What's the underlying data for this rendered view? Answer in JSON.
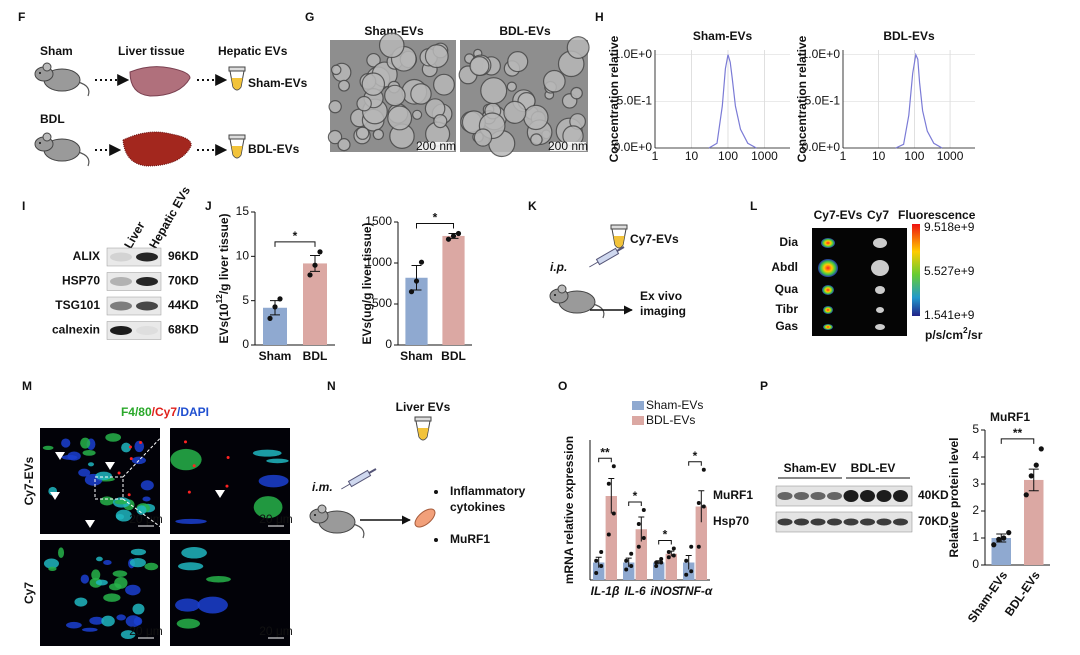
{
  "F": {
    "label": "F",
    "sham": "Sham",
    "liver_tissue": "Liver tissue",
    "hepatic_evs": "Hepatic EVs",
    "sham_evs": "Sham-EVs",
    "bdl": "BDL",
    "bdl_evs": "BDL-EVs"
  },
  "G": {
    "label": "G",
    "titles": [
      "Sham-EVs",
      "BDL-EVs"
    ],
    "scale_bars": [
      "200 nm",
      "200 nm"
    ]
  },
  "H": {
    "label": "H",
    "charts": [
      {
        "type": "line",
        "title": "Sham-EVs",
        "y_label": "Concentration relative",
        "x": [
          30,
          50,
          70,
          85,
          100,
          115,
          130,
          160,
          220,
          350,
          600
        ],
        "values": [
          0,
          0.05,
          0.45,
          0.85,
          1.0,
          0.92,
          0.75,
          0.45,
          0.2,
          0.05,
          0
        ],
        "color": "#7b7bd6",
        "xscale": "log",
        "xlim": [
          1,
          5000
        ],
        "xticks": [
          1,
          10,
          100,
          1000
        ],
        "ylim": [
          0,
          1.05
        ],
        "yticks": [
          {
            "value": 0,
            "label": "0.0E+0"
          },
          {
            "value": 0.5,
            "label": "5.0E-1"
          },
          {
            "value": 1,
            "label": "1.0E+0"
          }
        ]
      },
      {
        "type": "line",
        "title": "BDL-EVs",
        "y_label": "Concentration relative",
        "x": [
          30,
          50,
          70,
          90,
          110,
          125,
          140,
          170,
          230,
          350,
          600
        ],
        "values": [
          0,
          0.04,
          0.35,
          0.8,
          1.0,
          0.95,
          0.7,
          0.4,
          0.18,
          0.05,
          0
        ],
        "color": "#7b7bd6",
        "xscale": "log",
        "xlim": [
          1,
          5000
        ],
        "xticks": [
          1,
          10,
          100,
          1000
        ],
        "ylim": [
          0,
          1.05
        ],
        "yticks": [
          {
            "value": 0,
            "label": "0.0E+0"
          },
          {
            "value": 0.5,
            "label": "5.0E-1"
          },
          {
            "value": 1,
            "label": "1.0E+0"
          }
        ]
      }
    ]
  },
  "I": {
    "label": "I",
    "columns": [
      "Liver",
      "Hepatic EVs"
    ],
    "rows": [
      {
        "protein": "ALIX",
        "size": "96KD"
      },
      {
        "protein": "HSP70",
        "size": "70KD"
      },
      {
        "protein": "TSG101",
        "size": "44KD"
      },
      {
        "protein": "calnexin",
        "size": "68KD"
      }
    ]
  },
  "J": {
    "label": "J",
    "charts": [
      {
        "type": "bar",
        "y_label": [
          "EVs(10",
          "12",
          "/g liver tissue)"
        ],
        "categories": [
          "Sham",
          "BDL"
        ],
        "values": [
          4.2,
          9.2
        ],
        "errors": [
          0.8,
          0.9
        ],
        "points": [
          [
            3.0,
            4.3,
            5.2
          ],
          [
            7.9,
            9.0,
            10.5
          ]
        ],
        "colors": [
          "#8fa9d0",
          "#dba8a3"
        ],
        "ylim": [
          0,
          15
        ],
        "yticks": [
          0,
          5,
          10,
          15
        ],
        "significance": "*"
      },
      {
        "type": "bar",
        "y_label": [
          "EVs(ug/g liver tissue)"
        ],
        "categories": [
          "Sham",
          "BDL"
        ],
        "values": [
          820,
          1330
        ],
        "errors": [
          150,
          30
        ],
        "points": [
          [
            650,
            780,
            1010
          ],
          [
            1290,
            1330,
            1360
          ]
        ],
        "colors": [
          "#8fa9d0",
          "#dba8a3"
        ],
        "ylim": [
          0,
          1500
        ],
        "yticks": [
          0,
          500,
          1000,
          1500
        ],
        "significance": "*"
      }
    ]
  },
  "K": {
    "label": "K",
    "tube": "Cy7-EVs",
    "route": "i.p.",
    "result": [
      "Ex vivo",
      "imaging"
    ]
  },
  "L": {
    "label": "L",
    "columns": [
      "Cy7-EVs",
      "Cy7"
    ],
    "scale_title": "Fluorescence",
    "scale_ticks": [
      "9.518e+9",
      "5.527e+9",
      "1.541e+9"
    ],
    "unit": [
      "p/s/cm",
      "2",
      "/sr"
    ],
    "rows": [
      "Dia",
      "Abdl",
      "Qua",
      "Tibr",
      "Gas"
    ]
  },
  "M": {
    "label": "M",
    "stain": [
      "F4/80",
      "/Cy7",
      "/DAPI"
    ],
    "rows": [
      "Cy7-EVs",
      "Cy7"
    ],
    "scale_bars": [
      "20 μm",
      "20 μm",
      "20 μm",
      "20 μm"
    ]
  },
  "N": {
    "label": "N",
    "tube": "Liver EVs",
    "route": "i.m.",
    "outcomes": [
      [
        "Inflammatory",
        "cytokines"
      ],
      [
        "MuRF1"
      ]
    ]
  },
  "O": {
    "label": "O",
    "type": "bar",
    "y_label": "mRNA relative expression",
    "categories": [
      "IL-1β",
      "IL-6",
      "iNOS",
      "TNF-α"
    ],
    "ylim": [
      0,
      8
    ],
    "significance": [
      "**",
      "*",
      "*",
      "*"
    ],
    "series": [
      {
        "name": "Sham-EVs",
        "color": "#8fa9d0",
        "values": [
          1,
          1,
          1,
          1
        ],
        "errors": [
          0.3,
          0.25,
          0.1,
          0.4
        ],
        "points": [
          [
            0.4,
            0.8,
            1.1,
            1.6
          ],
          [
            0.6,
            0.8,
            1.1,
            1.5
          ],
          [
            0.8,
            1.0,
            1.0,
            1.2
          ],
          [
            0.3,
            0.5,
            1.1,
            1.9
          ]
        ]
      },
      {
        "name": "BDL-EVs",
        "color": "#dba8a3",
        "values": [
          4.8,
          2.9,
          1.5,
          4.2
        ],
        "errors": [
          1.0,
          0.7,
          0.15,
          0.9
        ],
        "points": [
          [
            2.6,
            3.8,
            5.5,
            6.5
          ],
          [
            1.9,
            2.4,
            3.2,
            4.0
          ],
          [
            1.3,
            1.4,
            1.6,
            1.8
          ],
          [
            1.9,
            4.2,
            4.4,
            6.3
          ]
        ]
      }
    ]
  },
  "P": {
    "label": "P",
    "blot": {
      "groups": [
        "Sham-EV",
        "BDL-EV"
      ],
      "rows": [
        {
          "protein": "MuRF1",
          "size": "40KD"
        },
        {
          "protein": "Hsp70",
          "size": "70KD"
        }
      ]
    },
    "chart": {
      "type": "bar",
      "title": "MuRF1",
      "y_label": [
        "Relative protein level"
      ],
      "categories": [
        "Sham-EVs",
        "BDL-EVs"
      ],
      "values": [
        1.0,
        3.15
      ],
      "errors": [
        0.15,
        0.4
      ],
      "points": [
        [
          0.75,
          0.95,
          1.0,
          1.2
        ],
        [
          2.6,
          3.3,
          3.7,
          4.3
        ]
      ],
      "colors": [
        "#8fa9d0",
        "#dba8a3"
      ],
      "ylim": [
        0,
        5
      ],
      "yticks": [
        0,
        1,
        2,
        3,
        4,
        5
      ],
      "significance": "**",
      "rotate_labels": true
    }
  }
}
